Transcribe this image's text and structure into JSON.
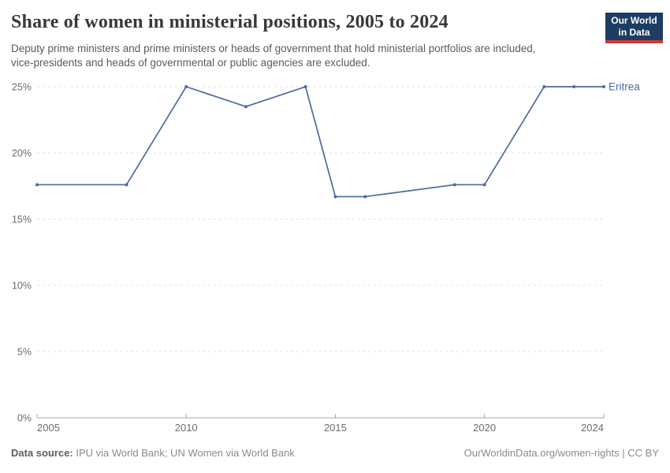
{
  "header": {
    "title": "Share of women in ministerial positions, 2005 to 2024",
    "subtitle": "Deputy prime ministers and prime ministers or heads of government that hold ministerial portfolios are included, vice-presidents and heads of governmental or public agencies are excluded."
  },
  "logo": {
    "line1": "Our World",
    "line2": "in Data",
    "bg_color": "#1d3d63",
    "accent_color": "#cf3a36"
  },
  "chart_data": {
    "type": "line",
    "title": "Share of women in ministerial positions, 2005 to 2024",
    "xlabel": "",
    "ylabel": "",
    "xlim": [
      2005,
      2024
    ],
    "ylim": [
      0,
      25
    ],
    "xticks": [
      2005,
      2010,
      2015,
      2020,
      2024
    ],
    "yticks": [
      0,
      5,
      10,
      15,
      20,
      25
    ],
    "ytick_suffix": "%",
    "grid": "horizontal-dashed",
    "legend_position": "end-of-line",
    "grid_color": "#e2e2e2",
    "axis_color": "#a5a5a5",
    "tick_color": "#6b6b6b",
    "series": [
      {
        "name": "Eritrea",
        "color": "#4c6a9c",
        "points": [
          {
            "x": 2005,
            "y": 17.6
          },
          {
            "x": 2008,
            "y": 17.6
          },
          {
            "x": 2010,
            "y": 25
          },
          {
            "x": 2012,
            "y": 23.5
          },
          {
            "x": 2014,
            "y": 25
          },
          {
            "x": 2015,
            "y": 16.7
          },
          {
            "x": 2016,
            "y": 16.7
          },
          {
            "x": 2019,
            "y": 17.6
          },
          {
            "x": 2020,
            "y": 17.6
          },
          {
            "x": 2022,
            "y": 25
          },
          {
            "x": 2023,
            "y": 25
          },
          {
            "x": 2024,
            "y": 25
          }
        ]
      }
    ]
  },
  "footer": {
    "source_label": "Data source:",
    "source_text": " IPU via World Bank; UN Women via World Bank",
    "right_text": "OurWorldinData.org/women-rights | CC BY"
  }
}
